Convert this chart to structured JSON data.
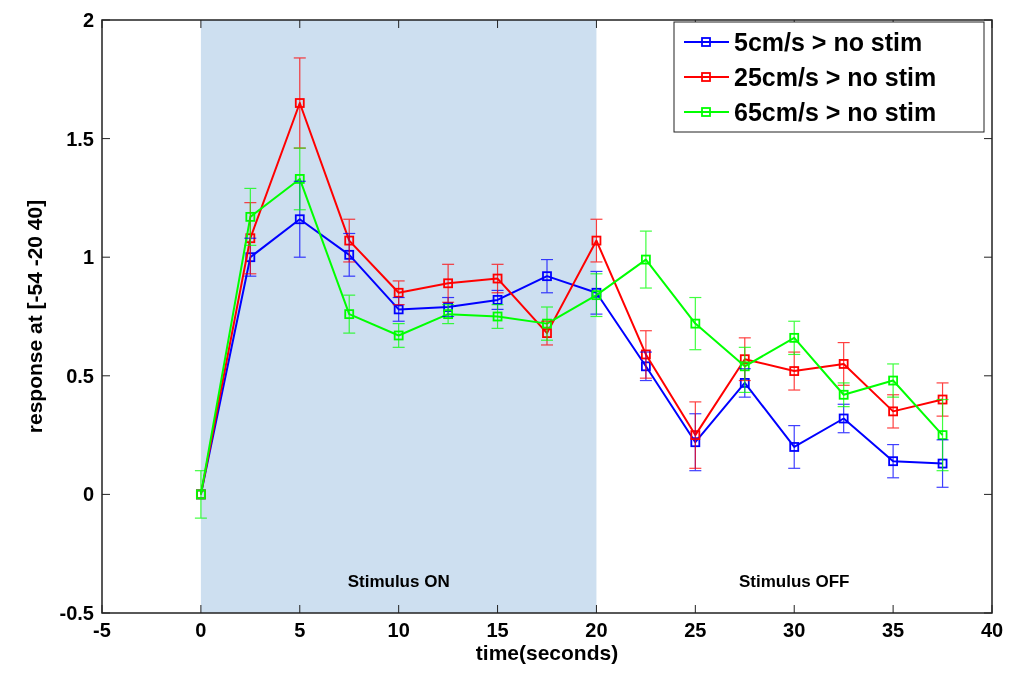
{
  "chart_data": {
    "type": "line",
    "xlabel": "time(seconds)",
    "ylabel": "response at [-54 -20 40]",
    "x": [
      0,
      2.5,
      5,
      7.5,
      10,
      12.5,
      15,
      17.5,
      20,
      22.5,
      25,
      27.5,
      30,
      32.5,
      35,
      37.5
    ],
    "series": [
      {
        "name": "5cm/s > no stim",
        "color": "#0000ff",
        "values": [
          0,
          1.0,
          1.16,
          1.01,
          0.78,
          0.79,
          0.82,
          0.92,
          0.85,
          0.54,
          0.22,
          0.47,
          0.2,
          0.32,
          0.14,
          0.13
        ],
        "errors": [
          null,
          0.08,
          0.16,
          0.09,
          0.05,
          0.04,
          0.04,
          0.07,
          0.09,
          0.06,
          0.12,
          0.06,
          0.09,
          0.06,
          0.07,
          0.1
        ]
      },
      {
        "name": "25cm/s > no stim",
        "color": "#ff0000",
        "values": [
          0,
          1.08,
          1.65,
          1.07,
          0.85,
          0.89,
          0.91,
          0.68,
          1.07,
          0.59,
          0.25,
          0.57,
          0.52,
          0.55,
          0.35,
          0.4
        ],
        "errors": [
          null,
          0.15,
          0.19,
          0.09,
          0.05,
          0.08,
          0.06,
          0.05,
          0.09,
          0.1,
          0.14,
          0.09,
          0.08,
          0.09,
          0.07,
          0.07
        ]
      },
      {
        "name": "65cm/s > no stim",
        "color": "#00ff00",
        "values": [
          0,
          1.17,
          1.33,
          0.76,
          0.67,
          0.76,
          0.75,
          0.72,
          0.84,
          0.99,
          0.72,
          0.54,
          0.66,
          0.42,
          0.48,
          0.25
        ],
        "errors": [
          0.1,
          0.12,
          0.13,
          0.08,
          0.05,
          0.04,
          0.05,
          0.07,
          0.09,
          0.12,
          0.11,
          [
            0.43,
            0.62
          ],
          0.07,
          0.05,
          0.07,
          0.15
        ]
      }
    ],
    "xlim": [
      -5,
      40
    ],
    "xticks": [
      -5,
      0,
      5,
      10,
      15,
      20,
      25,
      30,
      35,
      40
    ],
    "ylim": [
      -0.5,
      2
    ],
    "yticks": [
      -0.5,
      0,
      0.5,
      1,
      1.5,
      2
    ],
    "bands": [
      {
        "axis": "x",
        "from": 0,
        "to": 20,
        "label": "Stimulus ON",
        "color": "#cddff0"
      }
    ],
    "annotations": [
      "Stimulus OFF"
    ],
    "legend": "top right",
    "marker": "square",
    "line_style": "solid",
    "grid": false
  }
}
